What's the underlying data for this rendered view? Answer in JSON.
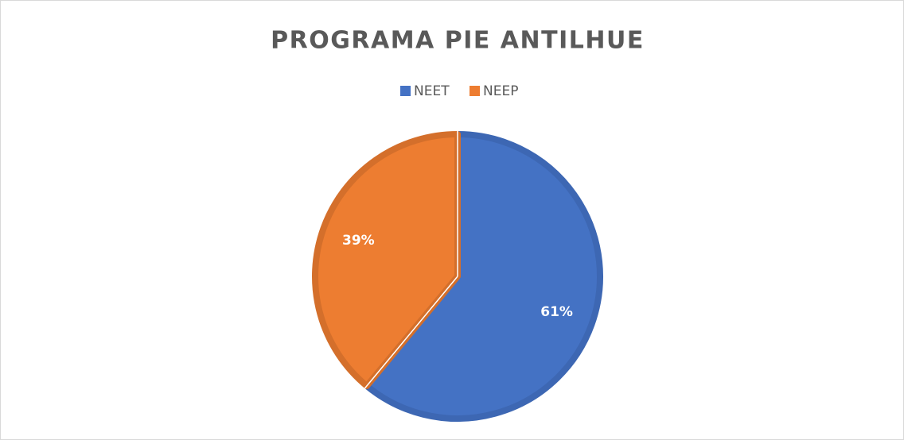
{
  "chart_data": {
    "type": "pie",
    "title": "PROGRAMA PIE ANTILHUE",
    "categories": [
      "NEET",
      "NEEP"
    ],
    "values": [
      61,
      39
    ],
    "value_labels": [
      "61%",
      "39%"
    ],
    "colors": [
      "#4472c4",
      "#ed7d31"
    ],
    "edge_colors": [
      "#3d67b3",
      "#d46f2b"
    ]
  }
}
